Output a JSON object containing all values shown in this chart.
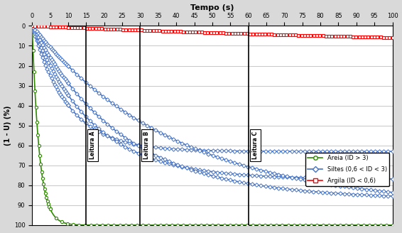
{
  "title_top": "Tempo (s)",
  "ylabel": "(1 - U) (%)",
  "xlim": [
    0,
    100
  ],
  "ylim_bottom": 100,
  "ylim_top": 0,
  "yticks": [
    0,
    10,
    20,
    30,
    40,
    50,
    60,
    70,
    80,
    90,
    100
  ],
  "xticks": [
    0,
    5,
    10,
    15,
    20,
    25,
    30,
    35,
    40,
    45,
    50,
    55,
    60,
    65,
    70,
    75,
    80,
    85,
    90,
    95,
    100
  ],
  "vlines": [
    15,
    30,
    60
  ],
  "leitura_labels": [
    "Leitura A",
    "Leitura B",
    "Leitura C"
  ],
  "bg_color": "#d9d9d9",
  "plot_bg": "#ffffff",
  "green_color": "#2e8b00",
  "blue_color": "#4472c4",
  "red_color": "#ff0000",
  "legend_entries": [
    "Areia (ID > 3)",
    "Siltes (0,6 < ID < 3)",
    "Argila (ID < 0,6)"
  ],
  "siltes_curves": [
    {
      "k": 0.1,
      "asymptote": 63
    },
    {
      "k": 0.06,
      "asymptote": 77
    },
    {
      "k": 0.04,
      "asymptote": 87
    },
    {
      "k": 0.025,
      "asymptote": 91
    }
  ],
  "areia_k": 0.5,
  "areia_asymptote": 100,
  "argila_k": 0.006,
  "argila_asymptote": 13
}
